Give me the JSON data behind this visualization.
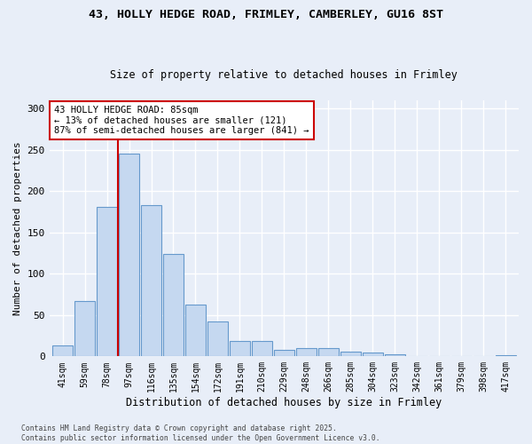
{
  "title_line1": "43, HOLLY HEDGE ROAD, FRIMLEY, CAMBERLEY, GU16 8ST",
  "title_line2": "Size of property relative to detached houses in Frimley",
  "xlabel": "Distribution of detached houses by size in Frimley",
  "ylabel": "Number of detached properties",
  "categories": [
    "41sqm",
    "59sqm",
    "78sqm",
    "97sqm",
    "116sqm",
    "135sqm",
    "154sqm",
    "172sqm",
    "191sqm",
    "210sqm",
    "229sqm",
    "248sqm",
    "266sqm",
    "285sqm",
    "304sqm",
    "323sqm",
    "342sqm",
    "361sqm",
    "379sqm",
    "398sqm",
    "417sqm"
  ],
  "values": [
    13,
    67,
    181,
    245,
    183,
    124,
    63,
    42,
    19,
    19,
    8,
    10,
    10,
    6,
    5,
    3,
    0,
    0,
    0,
    0,
    1
  ],
  "bar_color": "#c5d8f0",
  "bar_edge_color": "#6699cc",
  "vline_x_pos": 2.5,
  "vline_color": "#cc0000",
  "annotation_text": "43 HOLLY HEDGE ROAD: 85sqm\n← 13% of detached houses are smaller (121)\n87% of semi-detached houses are larger (841) →",
  "annotation_box_color": "#ffffff",
  "annotation_box_edge": "#cc0000",
  "background_color": "#e8eef8",
  "grid_color": "#ffffff",
  "footer": "Contains HM Land Registry data © Crown copyright and database right 2025.\nContains public sector information licensed under the Open Government Licence v3.0.",
  "ylim": [
    0,
    310
  ],
  "yticks": [
    0,
    50,
    100,
    150,
    200,
    250,
    300
  ],
  "title1_fontsize": 9.5,
  "title2_fontsize": 8.5,
  "tick_fontsize": 7,
  "ylabel_fontsize": 8,
  "xlabel_fontsize": 8.5
}
